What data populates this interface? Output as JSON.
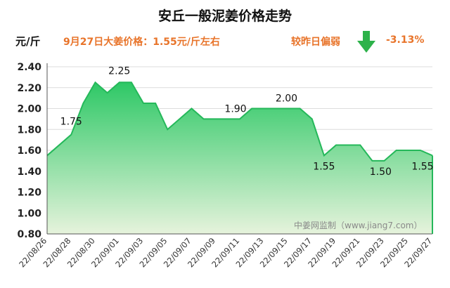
{
  "header": {
    "title": "安丘一般泥姜价格走势",
    "unit": "元/斤",
    "price_text": "9月27日大姜价格：1.55元/斤左右",
    "change_label": "较昨日偏弱",
    "change_value": "-3.13%",
    "change_icon": "down-arrow-icon",
    "change_color": "#2db24a",
    "accent_color": "#e8742a"
  },
  "watermark": "中姜网监制（www.jiang7.com）",
  "chart_data": {
    "type": "area",
    "title": "安丘一般泥姜价格走势",
    "ylabel": "元/斤",
    "xlabel": "",
    "ylim": [
      0.8,
      2.4
    ],
    "yticks": [
      "0.80",
      "1.00",
      "1.20",
      "1.40",
      "1.60",
      "1.80",
      "2.00",
      "2.20",
      "2.40"
    ],
    "grid": true,
    "x_tick_labels": [
      "22/08/26",
      "22/08/28",
      "22/08/30",
      "22/09/01",
      "22/09/03",
      "22/09/05",
      "22/09/07",
      "22/09/09",
      "22/09/11",
      "22/09/13",
      "22/09/15",
      "22/09/17",
      "22/09/19",
      "22/09/21",
      "22/09/23",
      "22/09/25",
      "22/09/27"
    ],
    "x": [
      "22/08/26",
      "22/08/27",
      "22/08/28",
      "22/08/29",
      "22/08/30",
      "22/08/31",
      "22/09/01",
      "22/09/02",
      "22/09/03",
      "22/09/04",
      "22/09/05",
      "22/09/06",
      "22/09/07",
      "22/09/08",
      "22/09/09",
      "22/09/10",
      "22/09/11",
      "22/09/12",
      "22/09/13",
      "22/09/14",
      "22/09/15",
      "22/09/16",
      "22/09/17",
      "22/09/18",
      "22/09/19",
      "22/09/20",
      "22/09/21",
      "22/09/22",
      "22/09/23",
      "22/09/24",
      "22/09/25",
      "22/09/26",
      "22/09/27"
    ],
    "values": [
      1.55,
      1.65,
      1.75,
      2.05,
      2.25,
      2.15,
      2.25,
      2.25,
      2.05,
      2.05,
      1.8,
      1.9,
      2.0,
      1.9,
      1.9,
      1.9,
      1.9,
      2.0,
      2.0,
      2.0,
      2.0,
      2.0,
      1.9,
      1.55,
      1.65,
      1.65,
      1.65,
      1.5,
      1.5,
      1.6,
      1.6,
      1.6,
      1.55
    ],
    "annotations": [
      {
        "date": "22/08/28",
        "text": "1.75"
      },
      {
        "date": "22/09/01",
        "text": "2.25"
      },
      {
        "date": "22/09/11",
        "text": "1.90"
      },
      {
        "date": "22/09/15",
        "text": "2.00"
      },
      {
        "date": "22/09/18",
        "text": "1.55"
      },
      {
        "date": "22/09/22",
        "text": "1.50"
      },
      {
        "date": "22/09/27",
        "text": "1.55"
      }
    ],
    "colors": {
      "fill_top": "#2ec866",
      "fill_bottom": "#e6f3dc",
      "line": "#25b85a"
    }
  }
}
